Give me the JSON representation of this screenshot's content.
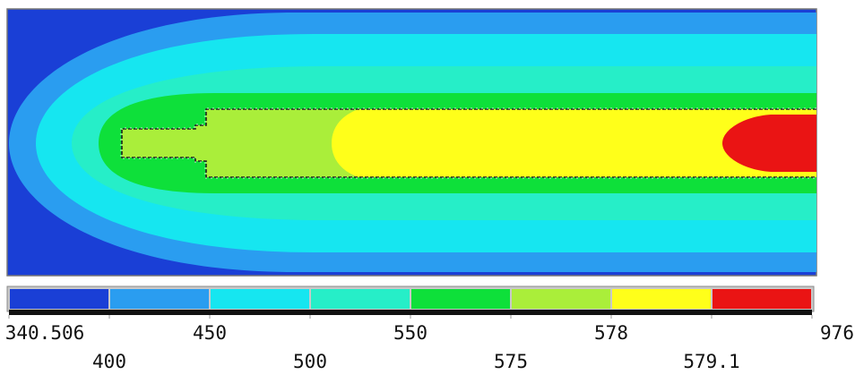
{
  "diagram": {
    "kind": "contour-plot",
    "band_colors": [
      "#1a3fd6",
      "#2a9df0",
      "#16e6f0",
      "#26eec8",
      "#0ee03a",
      "#aaee3a",
      "#ffff1a",
      "#ea1414"
    ],
    "background_color": "#1a3fd6"
  },
  "legend": {
    "boundaries": [
      "340.506",
      "400",
      "450",
      "500",
      "550",
      "575",
      "578",
      "579.1",
      "976"
    ],
    "colors": [
      "#1a3fd6",
      "#2a9df0",
      "#16e6f0",
      "#26eec8",
      "#0ee03a",
      "#aaee3a",
      "#ffff1a",
      "#ea1414"
    ]
  }
}
